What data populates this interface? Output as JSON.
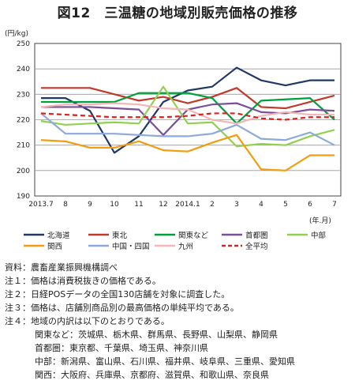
{
  "title": "図12　三温糖の地域別販売価格の推移",
  "unit_label": "(円/kg)",
  "x_unit_label": "(年.月)",
  "notes": {
    "source": "資料：農畜産業振興機構調べ",
    "note1": "注１：価格は消費税抜きの価格である。",
    "note2": "注２：日経POSデータの全国130店舗を対象に調査した。",
    "note3": "注３：価格は、店舗別商品別の最高価格の単純平均である。",
    "note4": "注４：地域の内訳は以下のとおりである。",
    "kanto": "関東など：茨城県、栃木県、群馬県、長野県、山梨県、静岡県",
    "shutoken": "首都圏：東京都、千葉県、埼玉県、神奈川県",
    "chubu": "中部：新潟県、富山県、石川県、福井県、岐阜県、三重県、愛知県",
    "kansai": "関西：大阪府、兵庫県、京都府、滋賀県、和歌山県、奈良県"
  },
  "chart_data": {
    "type": "line",
    "categories": [
      "2013.7",
      "8",
      "9",
      "10",
      "11",
      "12",
      "2014.1",
      "2",
      "3",
      "4",
      "5",
      "6",
      "7"
    ],
    "ylim": [
      190,
      250
    ],
    "yticks": [
      190,
      200,
      210,
      220,
      230,
      240,
      250
    ],
    "grid": true,
    "legend_position": "bottom",
    "series": [
      {
        "name": "北海道",
        "color": "#1f3864",
        "dash": false,
        "values": [
          228.5,
          228.5,
          223.5,
          207,
          213.5,
          227,
          231.5,
          233,
          240.5,
          235.5,
          233.5,
          235.5,
          235.5
        ]
      },
      {
        "name": "東北",
        "color": "#c0392b",
        "dash": false,
        "values": [
          232.5,
          232.5,
          232.5,
          230,
          227.5,
          229,
          226.5,
          229,
          232.5,
          225,
          224.5,
          227,
          229.5
        ]
      },
      {
        "name": "関東など",
        "color": "#00a03c",
        "dash": false,
        "values": [
          227,
          227,
          227,
          227,
          230.5,
          230.5,
          230.5,
          228.5,
          218.5,
          227.5,
          228,
          228.5,
          220
        ]
      },
      {
        "name": "首都圏",
        "color": "#7b4f9a",
        "dash": false,
        "values": [
          225,
          225,
          225,
          224.5,
          224,
          214,
          224,
          226,
          226.5,
          223,
          222.5,
          224,
          223.5
        ]
      },
      {
        "name": "中部",
        "color": "#92d050",
        "dash": false,
        "values": [
          219.5,
          218,
          218.5,
          219,
          218.5,
          233,
          218.5,
          219,
          209.5,
          210.5,
          210,
          213.5,
          216
        ]
      },
      {
        "name": "関西",
        "color": "#f39c12",
        "dash": false,
        "values": [
          212,
          211.5,
          209,
          209,
          211.5,
          208,
          207.5,
          211,
          214,
          200.5,
          200,
          206,
          206
        ]
      },
      {
        "name": "中国・四国",
        "color": "#8eaadb",
        "dash": false,
        "values": [
          222.5,
          214.5,
          214.5,
          214.5,
          214,
          213.5,
          213.5,
          214.5,
          218,
          212.5,
          212,
          215,
          210
        ]
      },
      {
        "name": "九州",
        "color": "#f4b6b6",
        "dash": false,
        "values": [
          225,
          226,
          226,
          226.5,
          226,
          224.5,
          224,
          220,
          218.5,
          221.5,
          223,
          222,
          222
        ]
      },
      {
        "name": "全平均",
        "color": "#e02020",
        "dash": true,
        "values": [
          222.5,
          222,
          221.5,
          221,
          221,
          221,
          221.5,
          222.5,
          222.5,
          220.5,
          220,
          221,
          221
        ]
      }
    ]
  }
}
